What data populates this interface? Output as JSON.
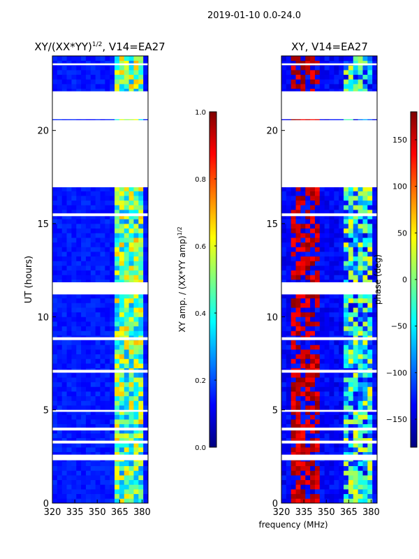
{
  "suptitle": "2019-01-10 0.0-24.0",
  "colors": {
    "jet": [
      "#00007f",
      "#0000ff",
      "#007fff",
      "#00ffff",
      "#7fff7f",
      "#ffff00",
      "#ff7f00",
      "#ff0000",
      "#7f0000"
    ]
  },
  "chart_data": [
    {
      "type": "heatmap",
      "title_main": "XY/(XX*YY)",
      "title_sup": "1/2",
      "title_rest": ", V14=EA27",
      "xlabel": "",
      "ylabel": "UT (hours)",
      "xlim": [
        320,
        384
      ],
      "ylim": [
        0,
        24
      ],
      "xticks": [
        320,
        335,
        350,
        365,
        380
      ],
      "yticks": [
        0,
        5,
        10,
        15,
        20
      ],
      "colorbar": {
        "label_main": "XY amp. / (XX*YY amp)",
        "label_sup": "1/2",
        "range": [
          0,
          1
        ],
        "ticks": [
          0.0,
          0.2,
          0.4,
          0.6,
          0.8,
          1.0
        ],
        "tick_labels": [
          "0.0",
          "0.2",
          "0.4",
          "0.6",
          "0.8",
          "1.0"
        ]
      },
      "gaps_hours": [
        [
          2.3,
          2.6
        ],
        [
          3.2,
          3.35
        ],
        [
          3.9,
          4.05
        ],
        [
          4.9,
          5.0
        ],
        [
          7.0,
          7.15
        ],
        [
          8.75,
          8.9
        ],
        [
          11.2,
          11.85
        ],
        [
          15.4,
          15.55
        ],
        [
          16.95,
          20.55
        ],
        [
          20.6,
          22.1
        ],
        [
          23.5,
          23.6
        ]
      ],
      "rfi_band_mhz": [
        361,
        381
      ],
      "background_value": 0.12
    },
    {
      "type": "heatmap",
      "title_main": "XY, V14=EA27",
      "title_sup": "",
      "title_rest": "",
      "xlabel": "frequency (MHz)",
      "ylabel": "",
      "xlim": [
        320,
        384
      ],
      "ylim": [
        0,
        24
      ],
      "xticks": [
        320,
        335,
        350,
        365,
        380
      ],
      "yticks": [
        0,
        5,
        10,
        15,
        20
      ],
      "colorbar": {
        "label_main": "phase (deg)",
        "label_sup": "",
        "range": [
          -180,
          180
        ],
        "ticks": [
          -150,
          -100,
          -50,
          0,
          50,
          100,
          150
        ],
        "tick_labels": [
          "−150",
          "−100",
          "−50",
          "0",
          "50",
          "100",
          "150"
        ]
      },
      "gaps_hours": [
        [
          2.3,
          2.6
        ],
        [
          3.2,
          3.35
        ],
        [
          3.9,
          4.05
        ],
        [
          4.9,
          5.0
        ],
        [
          7.0,
          7.15
        ],
        [
          8.75,
          8.9
        ],
        [
          11.2,
          11.85
        ],
        [
          15.4,
          15.55
        ],
        [
          16.95,
          20.55
        ],
        [
          20.6,
          22.1
        ],
        [
          23.5,
          23.6
        ]
      ],
      "rfi_band_mhz": [
        361,
        381
      ],
      "background_value": -130
    }
  ]
}
